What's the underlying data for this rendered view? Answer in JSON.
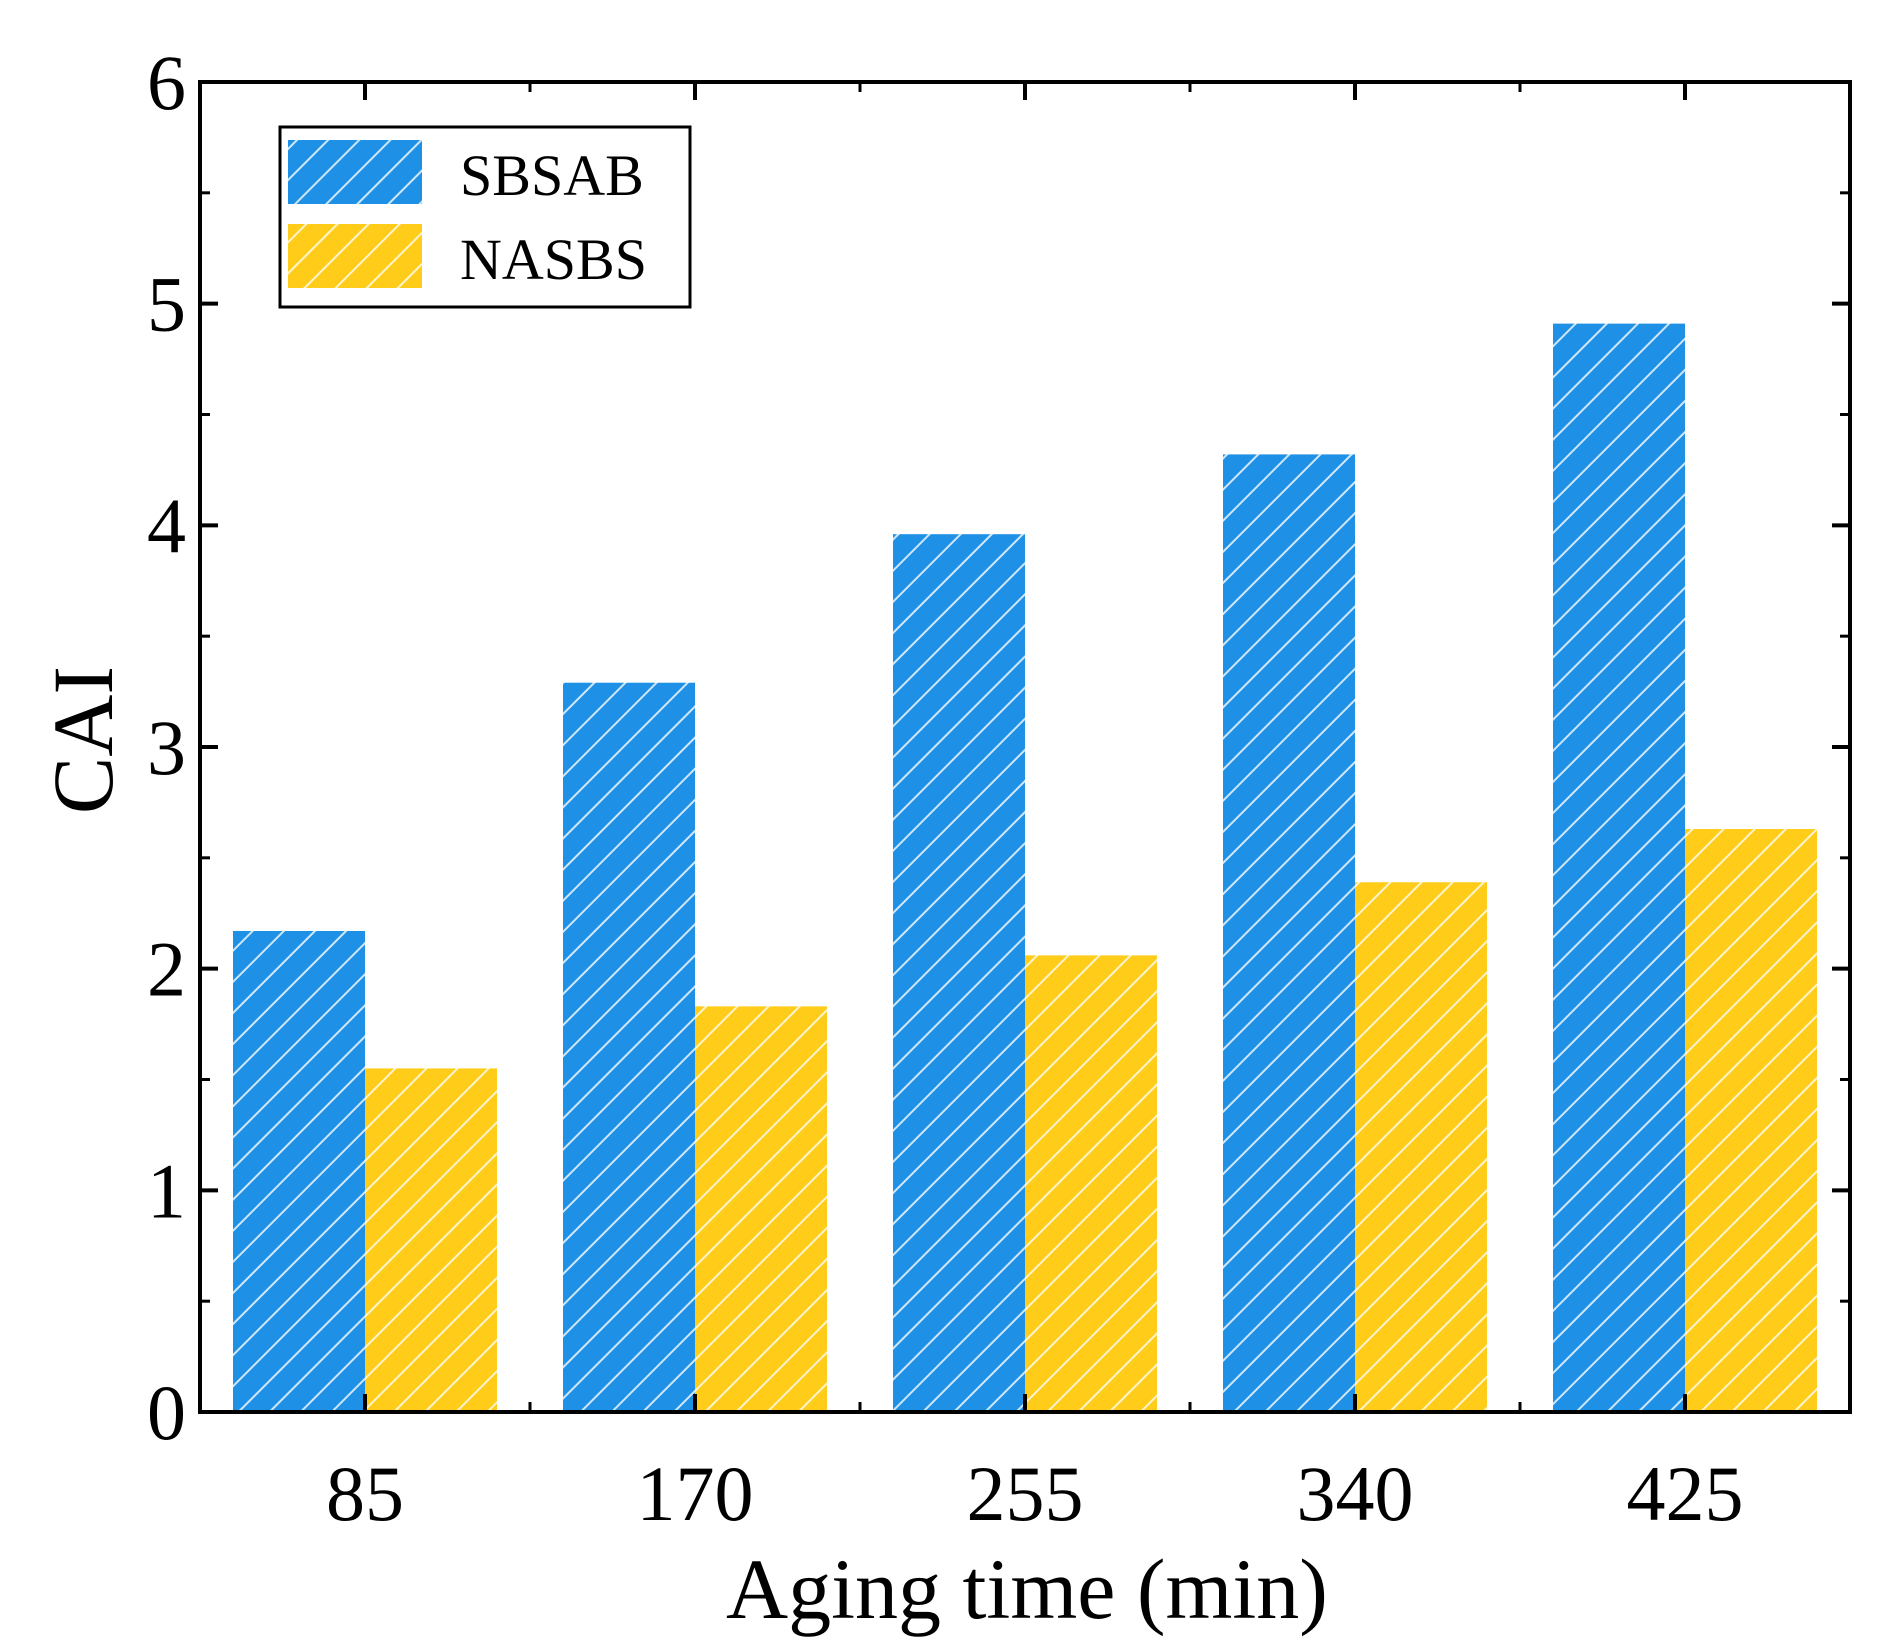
{
  "chart_data": {
    "type": "bar",
    "title": "",
    "xlabel": "Aging time (min)",
    "ylabel": "CAI",
    "categories": [
      "85",
      "170",
      "255",
      "340",
      "425"
    ],
    "series": [
      {
        "name": "SBSAB",
        "color": "#1E90E6",
        "values": [
          2.17,
          3.29,
          3.96,
          4.32,
          4.91
        ]
      },
      {
        "name": "NASBS",
        "color": "#FFCC1A",
        "values": [
          1.55,
          1.83,
          2.06,
          2.39,
          2.63
        ]
      }
    ],
    "ylim": [
      0,
      6
    ],
    "yticks": [
      "0",
      "1",
      "2",
      "3",
      "4",
      "5",
      "6"
    ],
    "legend_position": "top-left",
    "grid": false,
    "pattern": "diagonal-hatch"
  }
}
